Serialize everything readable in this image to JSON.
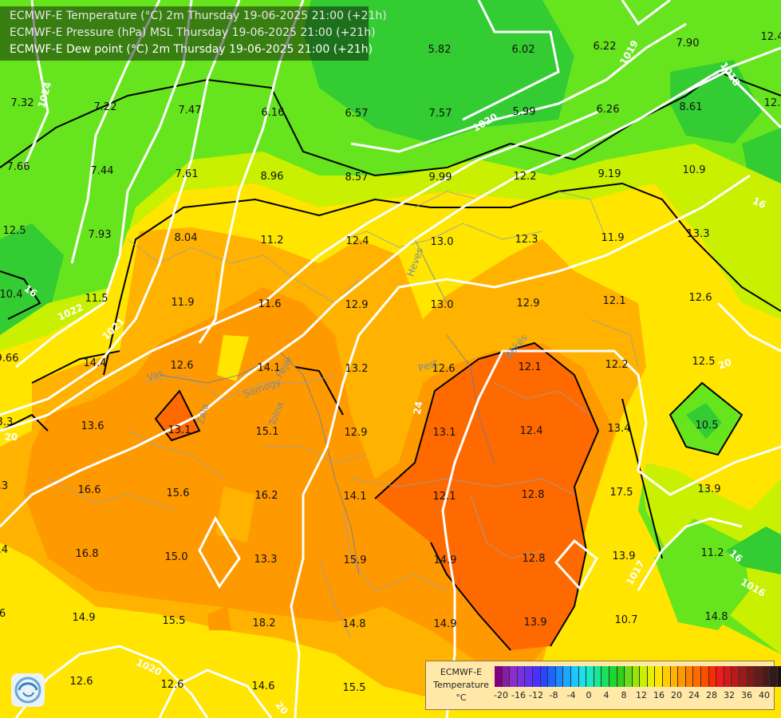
{
  "header": {
    "line1": "ECMWF-E Temperature (°C) 2m Thursday 19-06-2025 21:00 (+21h)",
    "line2": "ECMWF-E Pressure (hPa) MSL Thursday 19-06-2025 21:00 (+21h)",
    "line3": "ECMWF-E Dew point (°C) 2m Thursday 19-06-2025 21:00 (+21h)"
  },
  "colors": {
    "green_dark": "#33cc33",
    "green_light": "#66e51e",
    "yellow_green": "#c8f000",
    "yellow": "#ffe500",
    "orange_light": "#ffb300",
    "orange": "#ff9900",
    "orange_dark": "#ff6a00"
  },
  "dewpoint_labels": [
    {
      "v": "5.82"
    },
    {
      "v": "6.02"
    },
    {
      "v": "6.22"
    },
    {
      "v": "7.90"
    },
    {
      "v": "12.4"
    },
    {
      "v": "7.32"
    },
    {
      "v": "7.22"
    },
    {
      "v": "7.47"
    },
    {
      "v": "6.16"
    },
    {
      "v": "6.57"
    },
    {
      "v": "7.57"
    },
    {
      "v": "5.99"
    },
    {
      "v": "6.26"
    },
    {
      "v": "8.61"
    },
    {
      "v": "12."
    },
    {
      "v": "7.66"
    },
    {
      "v": "7.44"
    },
    {
      "v": "7.61"
    },
    {
      "v": "8.96"
    },
    {
      "v": "8.57"
    },
    {
      "v": "9.99"
    },
    {
      "v": "12.2"
    },
    {
      "v": "9.19"
    },
    {
      "v": "10.9"
    },
    {
      "v": "12.5"
    },
    {
      "v": "7.93"
    },
    {
      "v": "8.04"
    },
    {
      "v": "11.2"
    },
    {
      "v": "12.4"
    },
    {
      "v": "13.0"
    },
    {
      "v": "12.3"
    },
    {
      "v": "11.9"
    },
    {
      "v": "13.3"
    },
    {
      "v": "10.4"
    },
    {
      "v": "11.5"
    },
    {
      "v": "11.9"
    },
    {
      "v": "11.6"
    },
    {
      "v": "12.9"
    },
    {
      "v": "13.0"
    },
    {
      "v": "12.9"
    },
    {
      "v": "12.1"
    },
    {
      "v": "12.6"
    },
    {
      "v": "9.66"
    },
    {
      "v": "14.4"
    },
    {
      "v": "12.6"
    },
    {
      "v": "14.1"
    },
    {
      "v": "13.2"
    },
    {
      "v": "12.6"
    },
    {
      "v": "12.1"
    },
    {
      "v": "12.2"
    },
    {
      "v": "12.5"
    },
    {
      "v": "3.3"
    },
    {
      "v": "13.6"
    },
    {
      "v": "13.1"
    },
    {
      "v": "15.1"
    },
    {
      "v": "12.9"
    },
    {
      "v": "13.1"
    },
    {
      "v": "12.4"
    },
    {
      "v": "13.4"
    },
    {
      "v": "10.5"
    },
    {
      "v": ".3"
    },
    {
      "v": "16.6"
    },
    {
      "v": "15.6"
    },
    {
      "v": "16.2"
    },
    {
      "v": "14.1"
    },
    {
      "v": "12.1"
    },
    {
      "v": "12.8"
    },
    {
      "v": "17.5"
    },
    {
      "v": "13.9"
    },
    {
      "v": ".4"
    },
    {
      "v": "16.8"
    },
    {
      "v": "15.0"
    },
    {
      "v": "13.3"
    },
    {
      "v": "15.9"
    },
    {
      "v": "14.9"
    },
    {
      "v": "12.8"
    },
    {
      "v": "13.9"
    },
    {
      "v": "11.2"
    },
    {
      "v": "6"
    },
    {
      "v": "14.9"
    },
    {
      "v": "15.5"
    },
    {
      "v": "18.2"
    },
    {
      "v": "14.8"
    },
    {
      "v": "14.9"
    },
    {
      "v": "13.9"
    },
    {
      "v": "10.7"
    },
    {
      "v": "14.8"
    },
    {
      "v": "12.6"
    },
    {
      "v": "12.6"
    },
    {
      "v": "14.6"
    },
    {
      "v": "15.5"
    }
  ],
  "pressure_labels": [
    {
      "v": "1024"
    },
    {
      "v": "1022"
    },
    {
      "v": "1021"
    },
    {
      "v": "1020"
    },
    {
      "v": "1019"
    },
    {
      "v": "1018"
    },
    {
      "v": "1017"
    },
    {
      "v": "1016"
    },
    {
      "v": "1020"
    }
  ],
  "isotherm_labels": [
    {
      "v": "20"
    },
    {
      "v": "24"
    },
    {
      "v": "16"
    },
    {
      "v": "16"
    },
    {
      "v": "20"
    },
    {
      "v": "20"
    },
    {
      "v": "16"
    }
  ],
  "region_labels": [
    {
      "v": "Vas"
    },
    {
      "v": "Somogy"
    },
    {
      "v": "Tolna"
    },
    {
      "v": "Heves"
    },
    {
      "v": "Pest"
    },
    {
      "v": "Békés"
    },
    {
      "v": "Zala"
    },
    {
      "v": "Fejér"
    }
  ],
  "legend": {
    "model": "ECMWF-E",
    "variable": "Temperature",
    "unit": "°C",
    "ticks": [
      "-20",
      "-16",
      "-12",
      "-8",
      "-4",
      "0",
      "4",
      "8",
      "12",
      "16",
      "20",
      "24",
      "28",
      "32",
      "36",
      "40"
    ],
    "colors": [
      "#800080",
      "#8a1aa8",
      "#8c2ccc",
      "#7a30e0",
      "#6430f0",
      "#4a30ff",
      "#2a44ff",
      "#1a66ff",
      "#1a88ff",
      "#1aa8ff",
      "#1ac8ff",
      "#1ae0e8",
      "#1ae8c0",
      "#1ae890",
      "#1ae060",
      "#1ad830",
      "#30d01a",
      "#66dd1a",
      "#99e600",
      "#c8f000",
      "#e6f000",
      "#ffe500",
      "#ffcc00",
      "#ffb300",
      "#ff9900",
      "#ff8000",
      "#ff6a00",
      "#ff4d00",
      "#ff2a00",
      "#f01a1a",
      "#d41a1a",
      "#b81a1a",
      "#9c1a1a",
      "#801a1a",
      "#661a1a",
      "#4d1a1a",
      "#331a1a",
      "#1f1010"
    ]
  }
}
